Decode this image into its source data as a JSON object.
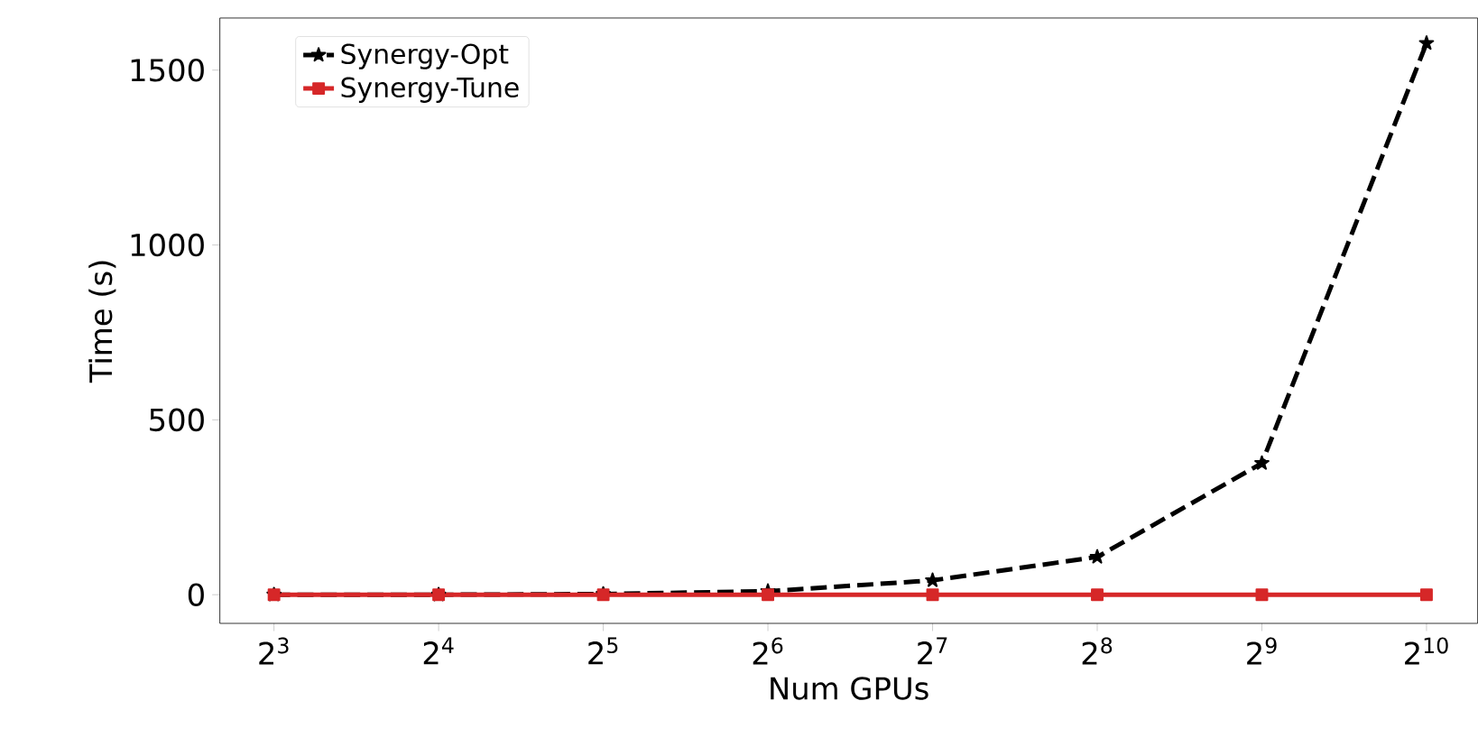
{
  "chart_data": {
    "type": "line",
    "xlabel": "Num GPUs",
    "ylabel": "Time (s)",
    "log": "x",
    "legend": "top left",
    "grid": false,
    "x": [
      8,
      16,
      32,
      64,
      128,
      256,
      512,
      1024
    ],
    "xlim": [
      6.37,
      1270
    ],
    "ylim": [
      -82,
      1649
    ],
    "xticks": [
      {
        "value": 8,
        "label": "2$^{3}$"
      },
      {
        "value": 16,
        "label": "2$^{4}$"
      },
      {
        "value": 32,
        "label": "2$^{5}$"
      },
      {
        "value": 64,
        "label": "2$^{6}$"
      },
      {
        "value": 128,
        "label": "2$^{7}$"
      },
      {
        "value": 256,
        "label": "2$^{8}$"
      },
      {
        "value": 512,
        "label": "2$^{9}$"
      },
      {
        "value": 1024,
        "label": "2$^{10}$"
      }
    ],
    "yticks": [
      0,
      500,
      1000,
      1500
    ],
    "series": [
      {
        "name": "Synergy-Opt",
        "color": "#000000",
        "marker": "star",
        "line_style": "dashed",
        "values": [
          0,
          0,
          2,
          10,
          41,
          108,
          376,
          1577
        ]
      },
      {
        "name": "Synergy-Tune",
        "color": "#d62728",
        "marker": "square",
        "line_style": "solid",
        "values": [
          0,
          0,
          0,
          0,
          0,
          0,
          0,
          0
        ]
      }
    ]
  }
}
